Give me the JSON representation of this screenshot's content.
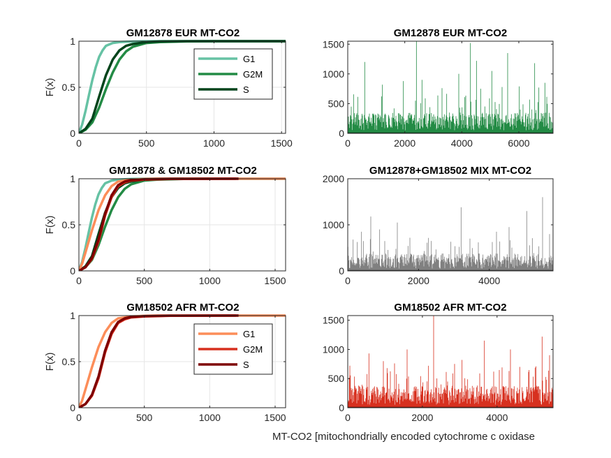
{
  "figure": {
    "xlabel": "MT-CO2 [mitochondrially encoded cytochrome c oxidase"
  },
  "chart_data": [
    {
      "type": "line",
      "title": "GM12878 EUR MT-CO2",
      "ylabel": "F(x)",
      "xlim": [
        0,
        1530
      ],
      "ylim": [
        0,
        1
      ],
      "xticks": [
        0,
        500,
        1000,
        1500
      ],
      "yticks": [
        0,
        0.5,
        1
      ],
      "grid": true,
      "legend": "top-right",
      "series": [
        {
          "name": "G1",
          "color": "#66c2a4",
          "x": [
            0,
            25,
            50,
            75,
            100,
            125,
            150,
            175,
            200,
            250,
            300,
            400,
            500,
            700,
            1000,
            1530
          ],
          "y": [
            0,
            0.1,
            0.25,
            0.42,
            0.58,
            0.72,
            0.83,
            0.9,
            0.95,
            0.98,
            0.99,
            0.997,
            1,
            1,
            1,
            1
          ]
        },
        {
          "name": "G2M",
          "color": "#238b45",
          "x": [
            0,
            50,
            100,
            150,
            200,
            250,
            300,
            350,
            400,
            500,
            600,
            800,
            1000,
            1530
          ],
          "y": [
            0,
            0.04,
            0.12,
            0.28,
            0.48,
            0.66,
            0.8,
            0.89,
            0.94,
            0.98,
            0.99,
            0.998,
            1,
            1
          ]
        },
        {
          "name": "S",
          "color": "#00441b",
          "x": [
            0,
            50,
            100,
            150,
            200,
            250,
            300,
            350,
            400,
            500,
            600,
            800,
            1530
          ],
          "y": [
            0,
            0.05,
            0.16,
            0.4,
            0.63,
            0.8,
            0.9,
            0.95,
            0.97,
            0.99,
            0.997,
            1,
            1
          ]
        }
      ]
    },
    {
      "type": "bar",
      "title": "GM12878 EUR MT-CO2",
      "xlim": [
        0,
        7200
      ],
      "ylim": [
        0,
        1550
      ],
      "xticks": [
        0,
        2000,
        4000,
        6000
      ],
      "yticks": [
        0,
        500,
        1000,
        1500
      ],
      "color": "#238b45",
      "n_cells": 7200,
      "baseline_range": [
        50,
        350
      ],
      "spikes": [
        [
          580,
          1200
        ],
        [
          1200,
          820
        ],
        [
          1950,
          880
        ],
        [
          2400,
          1550
        ],
        [
          2600,
          900
        ],
        [
          3300,
          760
        ],
        [
          3880,
          1000
        ],
        [
          4300,
          1520
        ],
        [
          4500,
          1220
        ],
        [
          4650,
          750
        ],
        [
          5050,
          1050
        ],
        [
          5400,
          780
        ],
        [
          5600,
          1350
        ],
        [
          6000,
          790
        ],
        [
          6550,
          1180
        ],
        [
          6700,
          770
        ],
        [
          6900,
          850
        ]
      ]
    },
    {
      "type": "line",
      "title": "GM12878 & GM18502 MT-CO2",
      "ylabel": "F(x)",
      "xlim": [
        0,
        1580
      ],
      "ylim": [
        0,
        1
      ],
      "xticks": [
        0,
        500,
        1000,
        1500
      ],
      "yticks": [
        0,
        0.5,
        1
      ],
      "grid": true,
      "series": [
        {
          "color": "#66c2a4",
          "x": [
            0,
            25,
            50,
            75,
            100,
            125,
            150,
            175,
            200,
            250,
            300,
            400,
            500,
            1580
          ],
          "y": [
            0,
            0.1,
            0.25,
            0.42,
            0.58,
            0.72,
            0.83,
            0.9,
            0.95,
            0.98,
            0.99,
            0.997,
            1,
            1
          ]
        },
        {
          "color": "#238b45",
          "x": [
            0,
            50,
            100,
            150,
            200,
            250,
            300,
            350,
            400,
            500,
            600,
            800,
            1000
          ],
          "y": [
            0,
            0.04,
            0.12,
            0.28,
            0.48,
            0.66,
            0.8,
            0.89,
            0.94,
            0.98,
            0.99,
            0.998,
            1
          ]
        },
        {
          "color": "#00441b",
          "x": [
            0,
            50,
            100,
            150,
            200,
            250,
            300,
            350,
            400,
            500,
            600,
            800
          ],
          "y": [
            0,
            0.05,
            0.16,
            0.4,
            0.63,
            0.8,
            0.9,
            0.95,
            0.97,
            0.99,
            0.997,
            1
          ]
        },
        {
          "color": "#fc8d59",
          "x": [
            0,
            25,
            50,
            100,
            150,
            200,
            250,
            300,
            400,
            500,
            600,
            1580
          ],
          "y": [
            0,
            0.08,
            0.2,
            0.44,
            0.66,
            0.82,
            0.92,
            0.97,
            0.99,
            0.997,
            1,
            1
          ]
        },
        {
          "color": "#d7301f",
          "x": [
            0,
            50,
            100,
            150,
            200,
            250,
            300,
            350,
            400,
            500,
            700,
            1200
          ],
          "y": [
            0,
            0.04,
            0.13,
            0.32,
            0.6,
            0.8,
            0.92,
            0.96,
            0.98,
            0.99,
            0.998,
            1
          ]
        },
        {
          "color": "#7f0000",
          "x": [
            0,
            50,
            100,
            150,
            200,
            250,
            300,
            350,
            400,
            500,
            700,
            1220
          ],
          "y": [
            0,
            0.04,
            0.14,
            0.34,
            0.62,
            0.82,
            0.93,
            0.97,
            0.985,
            0.995,
            0.999,
            1
          ]
        }
      ]
    },
    {
      "type": "bar",
      "title": "GM12878+GM18502 MIX MT-CO2",
      "xlim": [
        0,
        5800
      ],
      "ylim": [
        0,
        2000
      ],
      "xticks": [
        0,
        2000,
        4000
      ],
      "yticks": [
        0,
        1000,
        2000
      ],
      "color": "#808080",
      "n_cells": 5800,
      "baseline_range": [
        50,
        380
      ],
      "spikes": [
        [
          150,
          680
        ],
        [
          380,
          850
        ],
        [
          650,
          1180
        ],
        [
          900,
          900
        ],
        [
          1400,
          1050
        ],
        [
          1750,
          720
        ],
        [
          2350,
          650
        ],
        [
          3200,
          1380
        ],
        [
          3450,
          700
        ],
        [
          4200,
          850
        ],
        [
          4550,
          950
        ],
        [
          5050,
          1300
        ],
        [
          5500,
          1600
        ],
        [
          5700,
          800
        ]
      ]
    },
    {
      "type": "line",
      "title": "GM18502 AFR MT-CO2",
      "ylabel": "F(x)",
      "xlim": [
        0,
        1580
      ],
      "ylim": [
        0,
        1
      ],
      "xticks": [
        0,
        500,
        1000,
        1500
      ],
      "yticks": [
        0,
        0.5,
        1
      ],
      "grid": true,
      "legend": "top-right",
      "series": [
        {
          "name": "G1",
          "color": "#fc8d59",
          "x": [
            0,
            25,
            50,
            100,
            150,
            200,
            250,
            300,
            400,
            500,
            600,
            1580
          ],
          "y": [
            0,
            0.08,
            0.2,
            0.44,
            0.66,
            0.82,
            0.92,
            0.97,
            0.99,
            0.997,
            1,
            1
          ]
        },
        {
          "name": "G2M",
          "color": "#d7301f",
          "x": [
            0,
            50,
            100,
            150,
            200,
            250,
            300,
            350,
            400,
            500,
            700,
            1200
          ],
          "y": [
            0,
            0.04,
            0.13,
            0.32,
            0.6,
            0.8,
            0.92,
            0.96,
            0.98,
            0.99,
            0.998,
            1
          ]
        },
        {
          "name": "S",
          "color": "#7f0000",
          "x": [
            0,
            50,
            100,
            150,
            200,
            250,
            300,
            350,
            400,
            500,
            700,
            1220
          ],
          "y": [
            0,
            0.04,
            0.14,
            0.34,
            0.62,
            0.82,
            0.93,
            0.97,
            0.985,
            0.995,
            0.999,
            1
          ]
        }
      ]
    },
    {
      "type": "bar",
      "title": "GM18502 AFR MT-CO2",
      "xlim": [
        0,
        5500
      ],
      "ylim": [
        0,
        1580
      ],
      "xticks": [
        0,
        2000,
        4000
      ],
      "yticks": [
        0,
        500,
        1000,
        1500
      ],
      "color": "#d7301f",
      "n_cells": 5500,
      "baseline_range": [
        50,
        380
      ],
      "spikes": [
        [
          50,
          720
        ],
        [
          560,
          930
        ],
        [
          950,
          800
        ],
        [
          1250,
          760
        ],
        [
          1580,
          1000
        ],
        [
          2300,
          1580
        ],
        [
          2850,
          750
        ],
        [
          3050,
          820
        ],
        [
          3650,
          1150
        ],
        [
          4350,
          1000
        ],
        [
          4600,
          700
        ],
        [
          5200,
          1220
        ],
        [
          5400,
          900
        ]
      ]
    }
  ]
}
